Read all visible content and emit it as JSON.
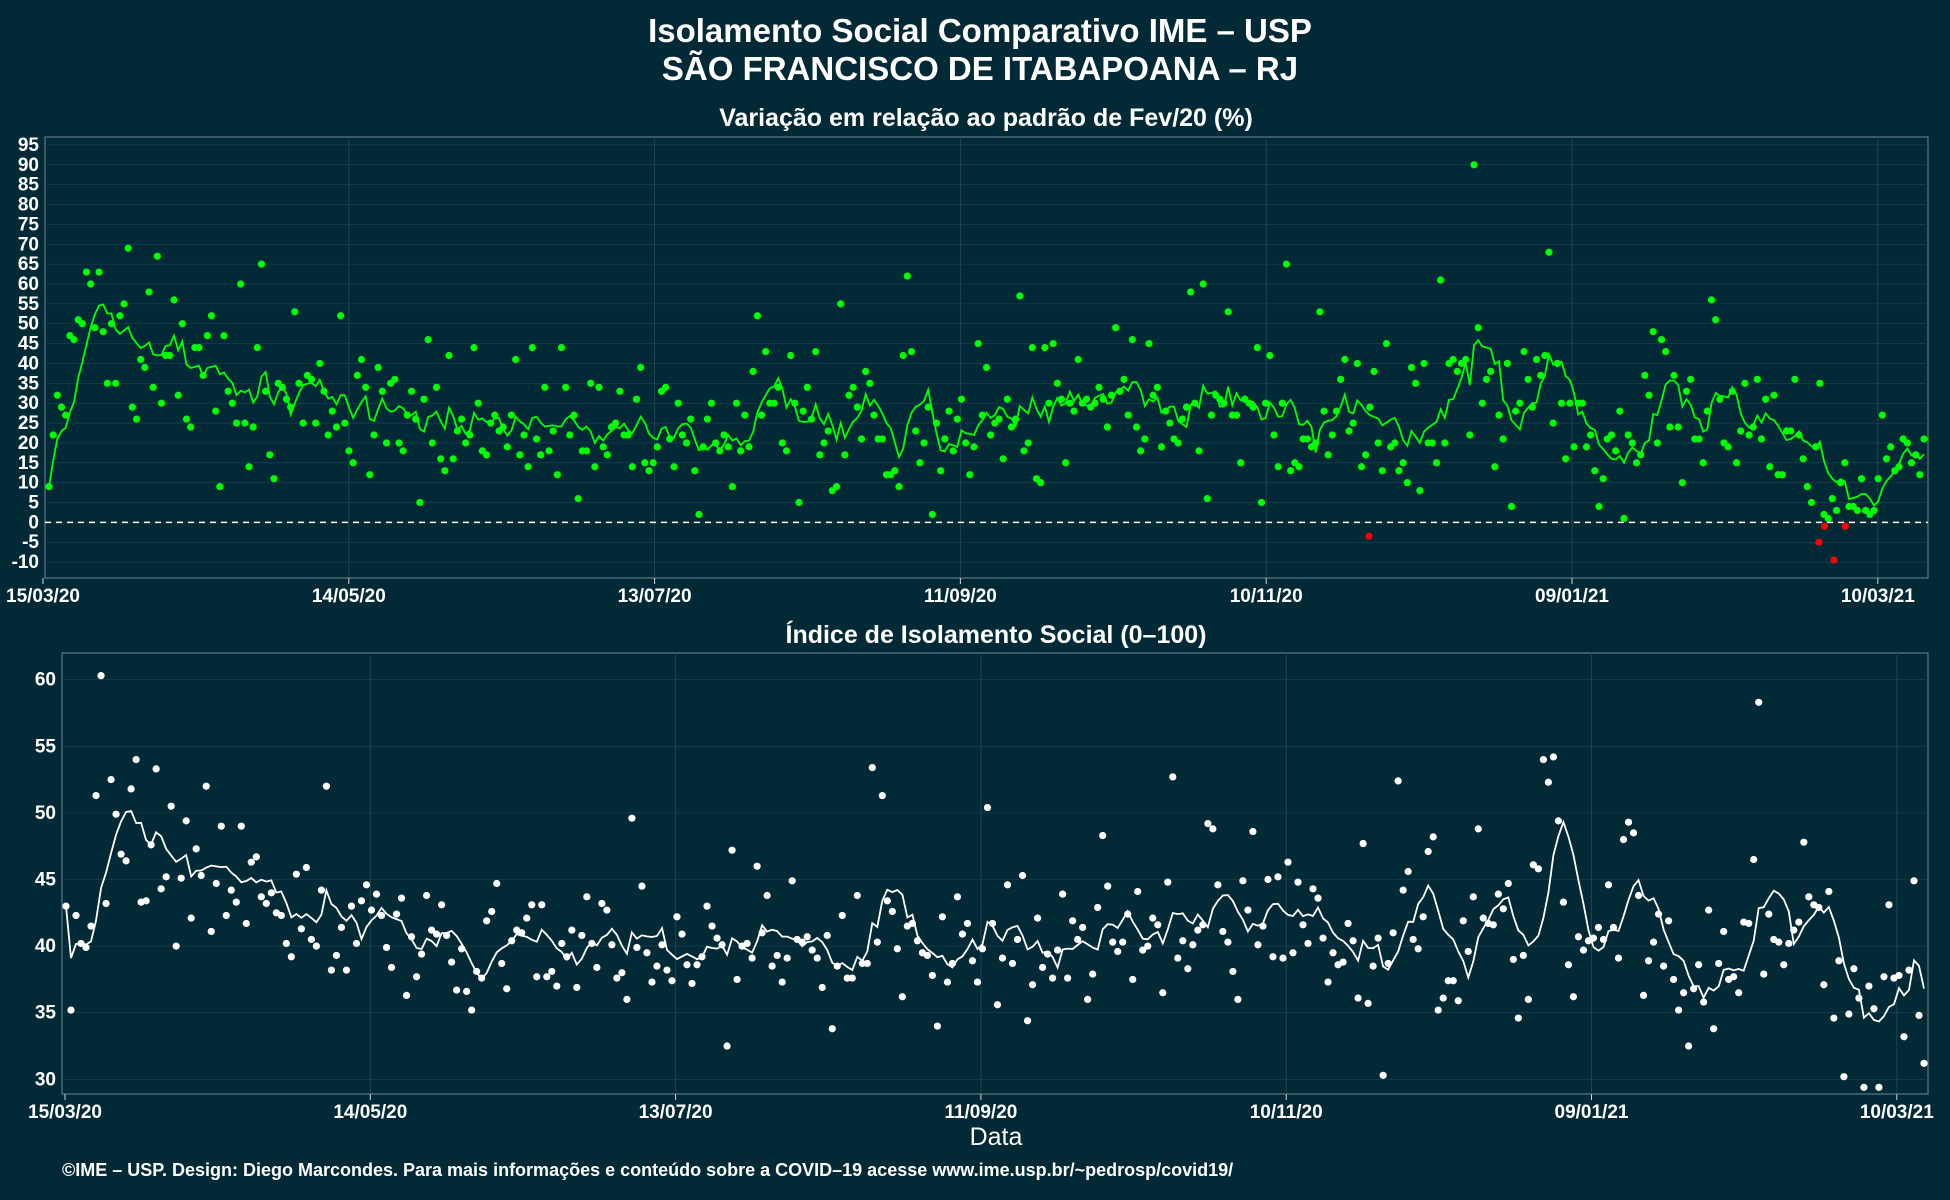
{
  "title_line1": "Isolamento Social Comparativo IME – USP",
  "title_line2": "SÃO FRANCISCO DE ITABAPOANA – RJ",
  "footer": "©IME – USP. Design: Diego Marcondes. Para mais informações e conteúdo sobre a COVID–19 acesse www.ime.usp.br/~pedrosp/covid19/",
  "colors": {
    "background": "#022a36",
    "positive": "#00ff00",
    "negative": "#ff0000",
    "index": "#ffffff",
    "grid": "#1d4452"
  },
  "chart_data": [
    {
      "type": "scatter",
      "title": "Variação em relação ao padrão de Fev/20 (%)",
      "xlabel": "",
      "ylabel": "",
      "x_tick_labels": [
        "15/03/20",
        "14/05/20",
        "13/07/20",
        "11/09/20",
        "10/11/20",
        "09/01/21",
        "10/03/21"
      ],
      "y_ticks": [
        -10,
        -5,
        0,
        5,
        10,
        15,
        20,
        25,
        30,
        35,
        40,
        45,
        50,
        55,
        60,
        65,
        70,
        75,
        80,
        85,
        90,
        95
      ],
      "ylim": [
        -14,
        97
      ],
      "reference_line": 0,
      "series": [
        {
          "values": [
            9,
            22,
            32,
            29,
            27,
            47,
            46,
            51,
            50,
            63,
            60,
            49,
            63,
            48,
            35,
            50,
            35,
            52,
            55,
            69,
            29,
            26,
            41,
            39,
            58,
            34,
            67,
            30,
            42,
            42,
            56,
            32,
            50,
            26,
            24,
            44,
            44,
            37,
            47,
            52,
            28,
            9,
            47,
            33,
            30,
            25,
            60,
            25,
            14,
            24,
            44,
            65,
            33,
            17,
            11,
            35,
            34,
            31,
            29,
            53,
            35,
            25,
            37,
            36,
            25,
            40,
            33,
            22,
            28,
            24,
            52,
            25,
            18,
            15,
            37,
            41,
            34,
            12,
            22,
            39,
            33,
            20,
            35,
            36,
            20,
            18,
            27,
            33,
            26,
            5,
            31,
            46,
            20,
            34,
            16,
            13,
            42,
            16,
            23,
            26,
            20,
            22,
            44,
            30,
            18,
            17,
            25,
            27,
            23,
            24,
            19,
            27,
            41,
            17,
            22,
            14,
            44,
            21,
            17,
            34,
            18,
            23,
            12,
            44,
            34,
            22,
            27,
            6,
            18,
            18,
            35,
            14,
            34,
            19,
            17,
            24,
            25,
            33,
            22,
            22,
            14,
            31,
            39,
            15,
            13,
            15,
            19,
            33,
            34,
            21,
            14,
            30,
            22,
            20,
            26,
            13,
            2,
            19,
            26,
            30,
            20,
            18,
            22,
            19,
            9,
            30,
            18,
            27,
            19,
            38,
            52,
            27,
            43,
            30,
            30,
            34,
            20,
            18,
            42,
            30,
            5,
            28,
            34,
            26,
            43,
            17,
            20,
            23,
            8,
            9,
            55,
            17,
            32,
            34,
            29,
            21,
            38,
            35,
            27,
            21,
            21,
            12,
            12,
            13,
            9,
            42,
            62,
            43,
            23,
            15,
            20,
            29,
            2,
            25,
            13,
            21,
            28,
            18,
            26,
            31,
            20,
            12,
            19,
            45,
            27,
            39,
            22,
            25,
            26,
            16,
            31,
            24,
            26,
            57,
            18,
            20,
            44,
            11,
            10,
            44,
            30,
            45,
            35,
            31,
            15,
            30,
            28,
            41,
            30,
            31,
            29,
            30,
            34,
            31,
            24,
            32,
            49,
            33,
            36,
            27,
            46,
            24,
            18,
            21,
            45,
            32,
            34,
            19,
            28,
            25,
            21,
            20,
            26,
            29,
            58,
            30,
            18,
            60,
            6,
            27,
            32,
            31,
            30,
            53,
            27,
            27,
            15,
            31,
            30,
            29,
            44,
            5,
            30,
            42,
            22,
            14,
            30,
            65,
            13,
            15,
            14,
            21,
            21,
            19,
            20,
            53,
            28,
            17,
            22,
            28,
            36,
            41,
            23,
            25,
            40,
            14,
            17,
            29,
            38,
            20,
            13,
            45,
            19,
            20,
            13,
            15,
            10,
            39,
            35,
            8,
            40,
            20,
            20,
            15,
            61,
            20,
            40,
            41,
            38,
            40,
            41,
            22,
            90,
            49,
            30,
            36,
            38,
            14,
            27,
            21,
            40,
            4,
            28,
            30,
            43,
            36,
            29,
            41,
            37,
            42,
            68,
            25,
            40,
            30,
            16,
            30,
            19,
            30,
            30,
            19,
            22,
            13,
            4,
            11,
            21,
            22,
            18,
            28,
            1,
            22,
            20,
            15,
            17,
            37,
            32,
            48,
            20,
            46,
            43,
            24,
            37,
            24,
            10,
            33,
            36,
            21,
            21,
            15,
            28,
            56,
            51,
            31,
            20,
            19,
            33,
            15,
            23,
            35,
            22,
            24,
            36,
            21,
            31,
            14,
            32,
            12,
            12,
            23,
            23,
            36,
            22,
            16,
            9,
            5,
            19,
            35,
            2,
            1,
            6,
            3,
            10,
            15,
            4,
            4,
            3,
            11,
            3,
            2,
            3,
            11,
            27,
            16,
            19,
            13,
            14,
            21,
            20,
            15,
            17,
            12,
            21
          ]
        },
        {
          "values": [
            -3.5,
            -5,
            -1,
            -9.5,
            -1
          ]
        }
      ]
    },
    {
      "type": "scatter",
      "title": "Índice de Isolamento Social (0–100)",
      "xlabel": "Data",
      "ylabel": "",
      "x_tick_labels": [
        "15/03/20",
        "14/05/20",
        "13/07/20",
        "11/09/20",
        "10/11/20",
        "09/01/21",
        "10/03/21"
      ],
      "y_ticks": [
        30,
        35,
        40,
        45,
        50,
        55,
        60
      ],
      "ylim": [
        28.9,
        62
      ],
      "series": [
        {
          "values": [
            43,
            35.2,
            42.3,
            40.2,
            39.9,
            41.5,
            51.3,
            60.3,
            43.2,
            52.5,
            49.9,
            46.9,
            46.4,
            51.8,
            54,
            43.3,
            43.4,
            47.6,
            53.3,
            44.3,
            45.2,
            50.5,
            40,
            45.1,
            49.4,
            42.1,
            47.3,
            45.3,
            52,
            41.1,
            44.7,
            49,
            42.3,
            44.2,
            43.3,
            49,
            41.7,
            46.3,
            46.7,
            43.7,
            43.2,
            44,
            42.5,
            42.3,
            40.2,
            39.2,
            45.4,
            41.3,
            45.9,
            40.5,
            40,
            44.2,
            52,
            38.2,
            39.3,
            41.4,
            38.2,
            43,
            40.2,
            43.4,
            44.6,
            42.7,
            43.9,
            42.3,
            39.9,
            38.4,
            42.4,
            43.6,
            36.3,
            40.7,
            37.7,
            39.4,
            43.8,
            41.2,
            40.9,
            43.1,
            40.8,
            38.8,
            36.7,
            39.8,
            36.6,
            35.2,
            38.1,
            37.6,
            41.9,
            42.6,
            44.7,
            38.7,
            36.8,
            40.4,
            41.2,
            41,
            42.1,
            43.1,
            37.7,
            43.1,
            37.7,
            38.1,
            37,
            40.2,
            39.2,
            41.2,
            36.9,
            40.8,
            43.7,
            40.2,
            38.4,
            43.2,
            42.7,
            40.1,
            37.6,
            38,
            36,
            49.6,
            39.9,
            44.5,
            39.5,
            37.3,
            38.5,
            40.1,
            38.2,
            37.4,
            42.2,
            40.9,
            38.6,
            37.2,
            38.6,
            39.2,
            43,
            41.5,
            40.6,
            40.1,
            32.5,
            47.2,
            37.5,
            40,
            40.2,
            39.1,
            46,
            41,
            43.8,
            38.5,
            39.3,
            37.3,
            39.1,
            44.9,
            40.5,
            40.3,
            40.7,
            39.7,
            39.1,
            36.9,
            40.8,
            33.8,
            38.5,
            42.3,
            37.6,
            37.6,
            43.8,
            38.7,
            38.7,
            53.4,
            40.3,
            51.3,
            43.4,
            42.6,
            39.8,
            36.2,
            41.5,
            41.7,
            40.4,
            39.5,
            39.3,
            37.8,
            34,
            42.2,
            37.3,
            38.7,
            43.7,
            40.9,
            41.7,
            38.9,
            37.3,
            39.8,
            50.4,
            41.7,
            35.6,
            39.1,
            44.6,
            38.7,
            40.5,
            45.3,
            34.4,
            37.1,
            42.1,
            38.4,
            39.4,
            37.6,
            39.7,
            43.9,
            37.6,
            41.9,
            40.5,
            41.4,
            36,
            37.9,
            42.9,
            48.3,
            44.5,
            40.3,
            39.6,
            40.3,
            42.4,
            37.5,
            44.1,
            39.7,
            40,
            42.1,
            41.6,
            36.5,
            44.8,
            52.7,
            39.1,
            40.4,
            38.3,
            40.1,
            41.2,
            41.6,
            49.2,
            48.8,
            44.6,
            41.1,
            40.3,
            38.1,
            36,
            44.9,
            42.7,
            48.6,
            40.1,
            41.5,
            45,
            39.2,
            45.2,
            39.1,
            46.3,
            39.5,
            44.8,
            41.6,
            40.2,
            44.3,
            43.6,
            40.6,
            37.3,
            39.5,
            38.6,
            38.8,
            41.7,
            40.4,
            36.1,
            47.7,
            35.7,
            38.5,
            40.6,
            30.3,
            38.7,
            41,
            52.4,
            44.2,
            45.6,
            40.5,
            39.8,
            42.2,
            47.1,
            48.2,
            35.2,
            36.1,
            37.4,
            37.4,
            35.9,
            41.9,
            39.6,
            43.7,
            48.8,
            42.1,
            41.7,
            41.6,
            43.9,
            42.8,
            44.7,
            39,
            34.6,
            39.3,
            36,
            46.1,
            45.8,
            54,
            52.3,
            54.2,
            49.4,
            43.3,
            38.6,
            36.2,
            40.7,
            39.7,
            40.4,
            40.6,
            41.4,
            40.5,
            44.6,
            41.4,
            39.1,
            48,
            49.3,
            48.5,
            43.8,
            36.3,
            38.9,
            40.3,
            42.4,
            38.5,
            41.9,
            37.5,
            35.2,
            36.5,
            32.5,
            36.8,
            38.6,
            35.8,
            42.7,
            33.8,
            38.7,
            41.1,
            37.5,
            37.7,
            36.5,
            41.8,
            41.7,
            46.5,
            58.3,
            37.9,
            42.4,
            40.5,
            40.3,
            38.6,
            40.2,
            41.2,
            41.8,
            47.8,
            43.7,
            43.1,
            42.9,
            37.1,
            44.1,
            34.6,
            38.9,
            30.2,
            34.9,
            38.3,
            36.1,
            29.4,
            37,
            35.3,
            29.4,
            37.7,
            43.1,
            37.6,
            37.8,
            33.2,
            38.2,
            44.9,
            34.8,
            31.2
          ]
        }
      ]
    }
  ]
}
